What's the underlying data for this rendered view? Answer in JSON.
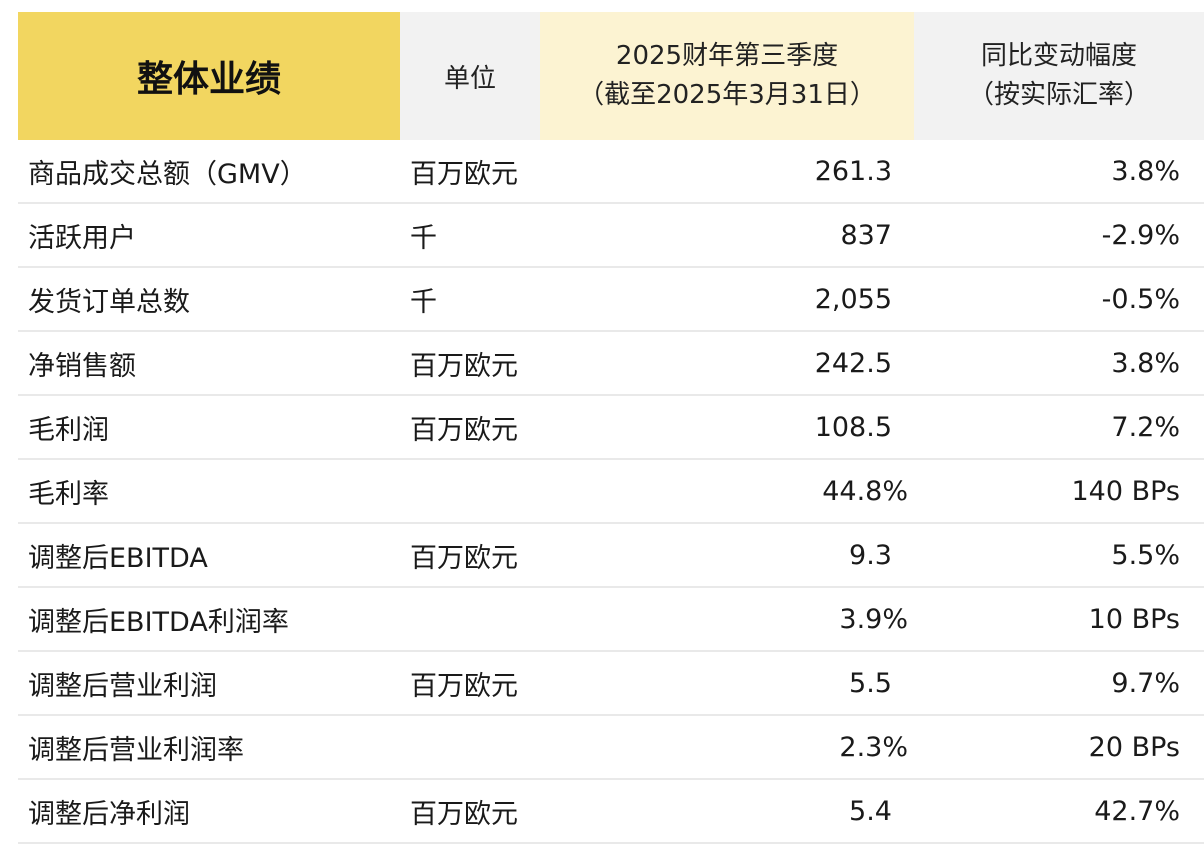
{
  "header": {
    "title": "整体业绩",
    "unit": "单位",
    "quarter_line1": "2025财年第三季度",
    "quarter_line2": "（截至2025年3月31日）",
    "yoy_line1": "同比变动幅度",
    "yoy_line2": "（按实际汇率）"
  },
  "rows": [
    {
      "label": "商品成交总额（GMV）",
      "unit": "百万欧元",
      "value": "261.3",
      "yoy": "3.8%"
    },
    {
      "label": "活跃用户",
      "unit": "千",
      "value": "837",
      "yoy": "-2.9%"
    },
    {
      "label": "发货订单总数",
      "unit": "千",
      "value": "2,055",
      "yoy": "-0.5%"
    },
    {
      "label": "净销售额",
      "unit": "百万欧元",
      "value": "242.5",
      "yoy": "3.8%"
    },
    {
      "label": "毛利润",
      "unit": "百万欧元",
      "value": "108.5",
      "yoy": "7.2%"
    },
    {
      "label": "毛利率",
      "unit": "",
      "value": "44.8%",
      "yoy": "140 BPs"
    },
    {
      "label": "调整后EBITDA",
      "unit": "百万欧元",
      "value": "9.3",
      "yoy": "5.5%"
    },
    {
      "label": "调整后EBITDA利润率",
      "unit": "",
      "value": "3.9%",
      "yoy": "10 BPs"
    },
    {
      "label": "调整后营业利润",
      "unit": "百万欧元",
      "value": "5.5",
      "yoy": "9.7%"
    },
    {
      "label": "调整后营业利润率",
      "unit": "",
      "value": "2.3%",
      "yoy": "20 BPs"
    },
    {
      "label": "调整后净利润",
      "unit": "百万欧元",
      "value": "5.4",
      "yoy": "42.7%"
    }
  ]
}
